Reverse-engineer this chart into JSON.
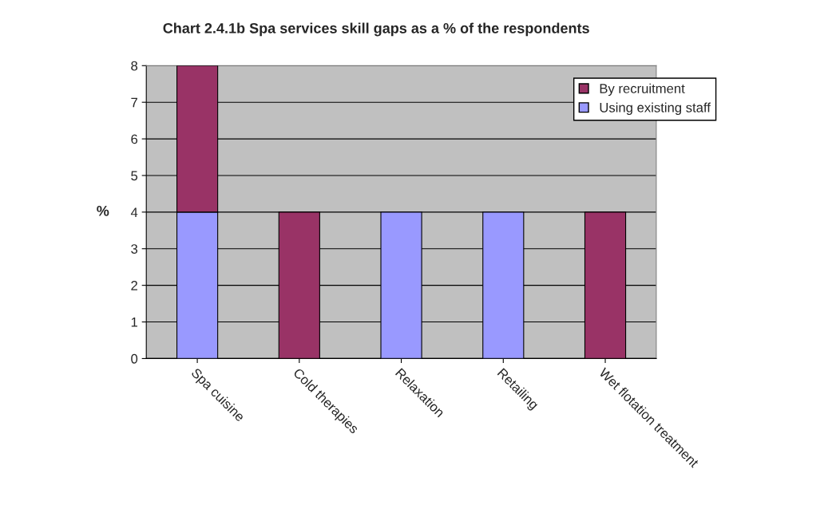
{
  "chart_data": {
    "type": "bar",
    "title": "Chart 2.4.1b Spa services skill gaps as a % of the respondents",
    "ylabel": "%",
    "categories": [
      "Spa cuisine",
      "Cold therapies",
      "Relaxation",
      "Retailing",
      "Wet flotation treatment"
    ],
    "stacked": true,
    "series": [
      {
        "name": "Using existing staff",
        "color": "#9999ff",
        "values": [
          4,
          null,
          4,
          4,
          null
        ]
      },
      {
        "name": "By recruitment",
        "color": "#993366",
        "values": [
          4,
          4,
          null,
          null,
          4
        ]
      }
    ],
    "ylim": [
      0,
      8
    ],
    "yticks": [
      0,
      1,
      2,
      3,
      4,
      5,
      6,
      7,
      8
    ],
    "grid": "y",
    "legend": "top right"
  }
}
